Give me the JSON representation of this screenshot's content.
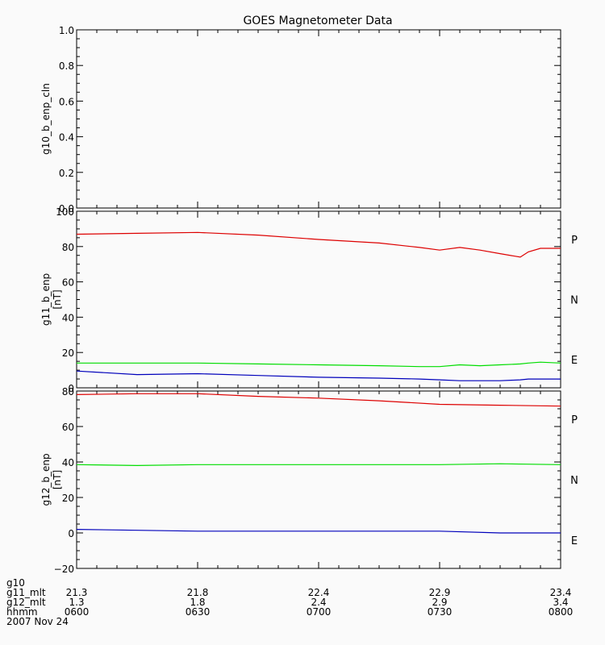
{
  "title": "GOES Magnetometer Data",
  "colors": {
    "P": "#dd0000",
    "N": "#00dd00",
    "E": "#0000bb",
    "axis": "#000000",
    "background": "#fafafa"
  },
  "chart_data": [
    {
      "type": "line",
      "panel": "g10",
      "ylabel": "g10_b_enp_cln",
      "unit": "",
      "ylim": [
        0,
        1.0
      ],
      "yticks": [
        "1.0",
        "0.8",
        "0.6",
        "0.4",
        "0.2",
        "0.0"
      ],
      "series": []
    },
    {
      "type": "line",
      "panel": "g11",
      "ylabel": "g11_b_enp",
      "unit": "[nT]",
      "ylim": [
        0,
        100
      ],
      "yticks": [
        "100",
        "80",
        "60",
        "40",
        "20",
        "0"
      ],
      "legend": [
        "P",
        "N",
        "E"
      ],
      "x_minutes": [
        0,
        15,
        30,
        45,
        60,
        75,
        85,
        90,
        95,
        100,
        105,
        110,
        112,
        115,
        120
      ],
      "series": [
        {
          "name": "P",
          "values": [
            87,
            87.5,
            88,
            86.5,
            84,
            82,
            79.5,
            78,
            79.5,
            78,
            76,
            74,
            77,
            79,
            79
          ]
        },
        {
          "name": "N",
          "values": [
            14,
            14,
            14,
            13.5,
            13,
            12.5,
            12,
            12,
            13,
            12.5,
            13,
            13.5,
            14,
            14.5,
            14
          ]
        },
        {
          "name": "E",
          "values": [
            9.5,
            7.5,
            8,
            7,
            6,
            5.5,
            5,
            4.5,
            4,
            4,
            4,
            4.5,
            5,
            5,
            5
          ]
        }
      ]
    },
    {
      "type": "line",
      "panel": "g12",
      "ylabel": "g12_b_enp",
      "unit": "[nT]",
      "ylim": [
        -20,
        80
      ],
      "yticks": [
        "80",
        "60",
        "40",
        "20",
        "0",
        "−20"
      ],
      "legend": [
        "P",
        "N",
        "E"
      ],
      "x_minutes": [
        0,
        15,
        30,
        45,
        60,
        75,
        90,
        105,
        120
      ],
      "series": [
        {
          "name": "P",
          "values": [
            78,
            78.5,
            78.5,
            77,
            76,
            74.5,
            72.5,
            72,
            71.5
          ]
        },
        {
          "name": "N",
          "values": [
            38.5,
            38,
            38.5,
            38.5,
            38.5,
            38.5,
            38.5,
            39,
            38.5
          ]
        },
        {
          "name": "E",
          "values": [
            2,
            1.5,
            1,
            1,
            1,
            1,
            1,
            0,
            0
          ]
        }
      ]
    }
  ],
  "x_axis": {
    "range_minutes": [
      0,
      120
    ],
    "tick_minutes": [
      0,
      30,
      60,
      90,
      120
    ],
    "rows": [
      {
        "label": "g10",
        "values": [
          "",
          "",
          "",
          "",
          ""
        ]
      },
      {
        "label": "g11_mlt",
        "values": [
          "21.3",
          "21.8",
          "22.4",
          "22.9",
          "23.4"
        ]
      },
      {
        "label": "g12_mlt",
        "values": [
          "1.3",
          "1.8",
          "2.4",
          "2.9",
          "3.4"
        ]
      },
      {
        "label": "hhmm",
        "values": [
          "0600",
          "0630",
          "0700",
          "0730",
          "0800"
        ]
      }
    ],
    "date": "2007 Nov 24"
  }
}
